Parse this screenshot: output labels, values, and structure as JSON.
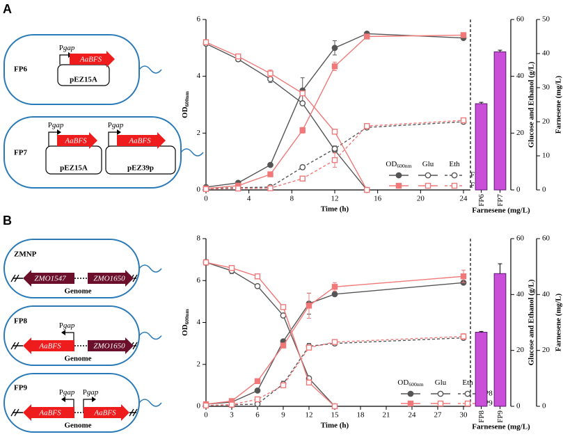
{
  "panel_labels": [
    "A",
    "B"
  ],
  "diagrams": [
    {
      "name": "FP6",
      "promoters": [
        [
          "P",
          "gap"
        ]
      ],
      "genes": [
        "AaBFS"
      ],
      "plasmids": [
        "pEZ15A"
      ]
    },
    {
      "name": "FP7",
      "promoters": [
        [
          "P",
          "gap"
        ],
        [
          "P",
          "gap"
        ]
      ],
      "genes": [
        "AaBFS",
        "AaBFS"
      ],
      "plasmids": [
        "pEZ15A",
        "pEZ39p"
      ]
    },
    {
      "name": "ZMNP",
      "promoters": [],
      "genes": [
        "ZMO1547",
        "ZMO1650"
      ],
      "genome": "Genome"
    },
    {
      "name": "FP8",
      "promoters": [
        [
          "P",
          "gap"
        ]
      ],
      "genes": [
        "AaBFS",
        "ZMO1650"
      ],
      "genome": "Genome"
    },
    {
      "name": "FP9",
      "promoters": [
        [
          "P",
          "gap"
        ],
        [
          "P",
          "gap"
        ]
      ],
      "genes": [
        "AaBFS",
        "AaBFS"
      ],
      "genome": "Genome"
    }
  ],
  "chart_data": [
    {
      "type": "line",
      "xlabel": "Time (h)",
      "ylabel": {
        "main": "OD",
        "sub": "600nm"
      },
      "y2label": "Glucose and Ethanol (g/L)",
      "x": [
        0,
        3,
        6,
        9,
        12,
        15,
        24
      ],
      "xlim": [
        0,
        24
      ],
      "xticks": [
        0,
        4,
        8,
        12,
        16,
        20,
        24
      ],
      "ylim": [
        0,
        6
      ],
      "yticks": [
        0,
        2,
        4,
        6
      ],
      "y2lim": [
        0,
        60
      ],
      "y2ticks": [
        0,
        20,
        40,
        60
      ],
      "measures": [
        {
          "label": {
            "main": "OD",
            "sub": "600nm"
          },
          "filled": true,
          "dash": false,
          "axis": "y"
        },
        {
          "label": {
            "main": "Glu"
          },
          "filled": false,
          "dash": false,
          "axis": "y2"
        },
        {
          "label": {
            "main": "Eth"
          },
          "filled": false,
          "dash": true,
          "axis": "y2"
        }
      ],
      "series": [
        {
          "name": "FP6",
          "color": "#555555",
          "marker": "circle",
          "values": [
            [
              0.1,
              0.25,
              0.88,
              3.5,
              5.0,
              5.5,
              5.35
            ],
            [
              51.5,
              46,
              39,
              30.5,
              14,
              0,
              null
            ],
            [
              0.5,
              0.8,
              1,
              8,
              14.5,
              22,
              24
            ]
          ],
          "errors": [
            [
              null,
              null,
              null,
              0.45,
              0.25,
              null,
              null
            ],
            [
              null,
              0.8,
              1.2,
              null,
              null,
              null,
              null
            ],
            [
              null,
              null,
              null,
              0.8,
              1,
              null,
              null
            ]
          ]
        },
        {
          "name": "FP7",
          "color": "#f07878",
          "marker": "square",
          "values": [
            [
              0.05,
              0.15,
              0.55,
              2.1,
              4.35,
              5.4,
              5.45
            ],
            [
              52,
              47,
              41,
              34,
              20.5,
              0,
              null
            ],
            [
              0.3,
              0.5,
              0.6,
              4,
              10.5,
              22.5,
              24.5
            ]
          ],
          "errors": [
            [
              null,
              null,
              null,
              0.1,
              0.15,
              null,
              null
            ],
            [
              null,
              0.8,
              1.2,
              null,
              null,
              null,
              null
            ],
            [
              null,
              null,
              null,
              null,
              2.5,
              null,
              null
            ]
          ]
        }
      ]
    },
    {
      "type": "bar",
      "xlabel": "Farnesene (mg/L)",
      "ylabel": "Farnesene (mg/L)",
      "categories": [
        "FP6",
        "FP7"
      ],
      "values": [
        25.3,
        40.5
      ],
      "errors": [
        0.4,
        0.5
      ],
      "color": "#c94fd8",
      "ylim": [
        0,
        50
      ],
      "yticks": [
        0,
        10,
        20,
        30,
        40,
        50
      ]
    },
    {
      "type": "line",
      "xlabel": "Time (h)",
      "ylabel": {
        "main": "OD",
        "sub": "600nm"
      },
      "y2label": "Glucose and Ethanol (g/L)",
      "x": [
        0,
        3,
        6,
        9,
        12,
        15,
        30
      ],
      "xlim": [
        0,
        30
      ],
      "xticks": [
        0,
        3,
        6,
        9,
        12,
        15,
        18,
        21,
        24,
        27,
        30
      ],
      "ylim": [
        0,
        8
      ],
      "yticks": [
        0,
        2,
        4,
        6,
        8
      ],
      "y2lim": [
        0,
        60
      ],
      "y2ticks": [
        0,
        20,
        40,
        60
      ],
      "measures": [
        {
          "label": {
            "main": "OD",
            "sub": "600nm"
          },
          "filled": true,
          "dash": false,
          "axis": "y"
        },
        {
          "label": {
            "main": "Glu"
          },
          "filled": false,
          "dash": false,
          "axis": "y2"
        },
        {
          "label": {
            "main": "Eth"
          },
          "filled": false,
          "dash": true,
          "axis": "y2"
        }
      ],
      "series": [
        {
          "name": "FP8",
          "color": "#555555",
          "marker": "circle",
          "values": [
            [
              0.1,
              0.2,
              0.75,
              3.1,
              4.9,
              5.35,
              5.9
            ],
            [
              51.5,
              48.5,
              43,
              32.5,
              10,
              0,
              null
            ],
            [
              0.3,
              0.5,
              0.8,
              8,
              21.5,
              22.5,
              24.5
            ]
          ],
          "errors": [
            [
              null,
              null,
              null,
              null,
              0.5,
              null,
              null
            ],
            [
              1,
              1,
              null,
              null,
              null,
              null,
              null
            ],
            [
              null,
              null,
              null,
              1,
              1,
              null,
              null
            ]
          ]
        },
        {
          "name": "FP9",
          "color": "#f07878",
          "marker": "square",
          "values": [
            [
              0.1,
              0.25,
              1.2,
              2.9,
              4.8,
              5.7,
              6.2
            ],
            [
              51.5,
              49.5,
              46.5,
              35.5,
              8.5,
              0,
              null
            ],
            [
              0.3,
              0.6,
              2.5,
              7.5,
              21,
              23,
              25
            ]
          ],
          "errors": [
            [
              null,
              null,
              null,
              null,
              0.6,
              0.2,
              0.3
            ],
            [
              null,
              null,
              null,
              null,
              null,
              null,
              null
            ],
            [
              null,
              null,
              null,
              null,
              null,
              null,
              1
            ]
          ]
        }
      ]
    },
    {
      "type": "bar",
      "xlabel": "Farnesene (mg/L)",
      "ylabel": "Farnesene (mg/L)",
      "categories": [
        "FP8",
        "FP9"
      ],
      "values": [
        26.5,
        47.5
      ],
      "errors": [
        0.3,
        3.5
      ],
      "color": "#c94fd8",
      "ylim": [
        0,
        60
      ],
      "yticks": [
        0,
        20,
        40,
        60
      ]
    }
  ]
}
